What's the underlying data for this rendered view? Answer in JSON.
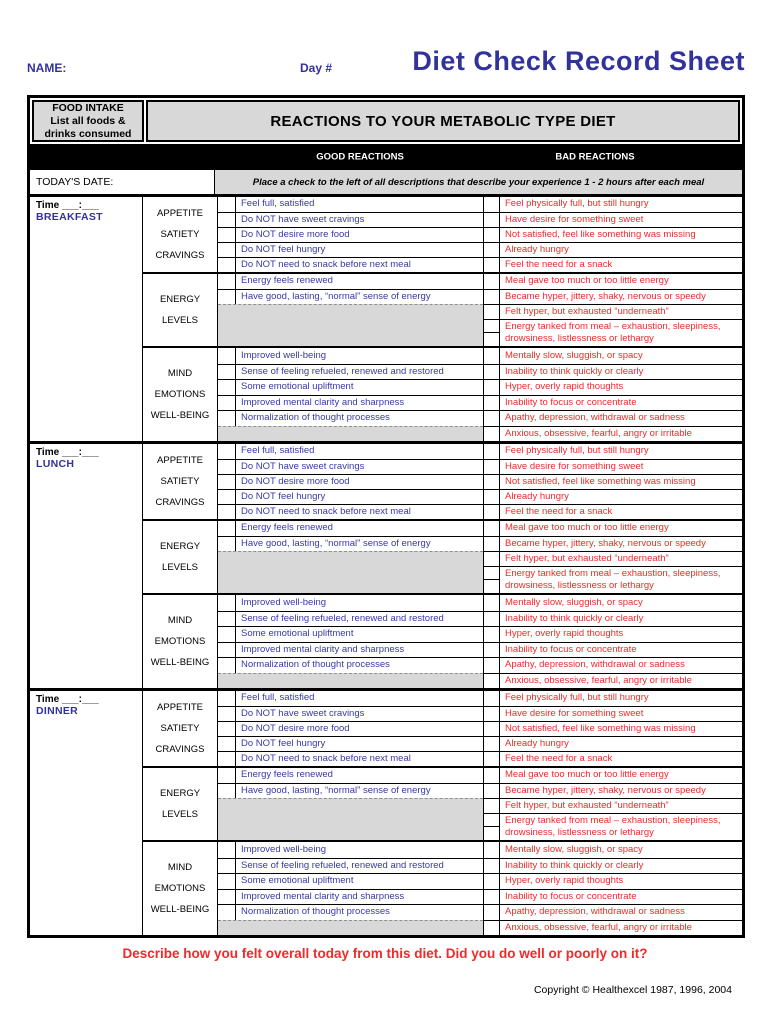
{
  "page": {
    "name_label": "NAME:",
    "day_label": "Day #",
    "title": "Diet Check Record Sheet",
    "footer_prompt": "Describe how you felt overall today from this diet. Did you do well or poorly on it?",
    "copyright": "Copyright © Healthexcel 1987, 1996, 2004"
  },
  "colors": {
    "accent_blue": "#32329b",
    "good_text_blue": "#3838a8",
    "bad_text_red": "#ee2a2a",
    "cell_gray": "#d8d8d8"
  },
  "table": {
    "food_intake_lines": [
      "FOOD INTAKE",
      "List all foods &",
      "drinks consumed"
    ],
    "reactions_header": "REACTIONS TO YOUR METABOLIC TYPE DIET",
    "good_header": "GOOD REACTIONS",
    "bad_header": "BAD REACTIONS",
    "date_label": "TODAY'S DATE:",
    "instruction": "Place a check to the left of all descriptions that describe your experience 1 - 2 hours after each meal"
  },
  "meals": [
    {
      "time_label": "Time ___:___",
      "name": "BREAKFAST",
      "sections": [
        {
          "key": "appetite",
          "category": [
            "APPETITE",
            "SATIETY",
            "CRAVINGS"
          ],
          "rows": [
            {
              "good": "Feel full, satisfied",
              "bad": "Feel physically full, but still hungry"
            },
            {
              "good": "Do NOT have sweet cravings",
              "bad": "Have desire for something sweet"
            },
            {
              "good": "Do NOT desire more food",
              "bad": "Not satisfied, feel like something was missing"
            },
            {
              "good": "Do NOT feel hungry",
              "bad": "Already hungry"
            },
            {
              "good": "Do NOT need to snack before next meal",
              "bad": "Feel the need for a snack"
            }
          ]
        },
        {
          "key": "energy",
          "category": [
            "ENERGY",
            "LEVELS"
          ],
          "rows": [
            {
              "good": "Energy feels renewed",
              "bad": "Meal gave too much or too little energy"
            },
            {
              "good": "Have good, lasting, “normal” sense of energy",
              "bad": "Became hyper, jittery, shaky, nervous or speedy"
            },
            {
              "good": null,
              "bad": "Felt hyper, but exhausted “underneath”"
            },
            {
              "good": null,
              "bad": "Energy tanked from meal – exhaustion, sleepiness, drowsiness, listlessness or lethargy",
              "tall": true
            }
          ]
        },
        {
          "key": "mind",
          "category": [
            "MIND",
            "EMOTIONS",
            "WELL-BEING"
          ],
          "rows": [
            {
              "good": "Improved well-being",
              "bad": "Mentally slow, sluggish, or spacy"
            },
            {
              "good": "Sense of feeling refueled, renewed and restored",
              "bad": "Inability to think quickly or clearly"
            },
            {
              "good": "Some emotional upliftment",
              "bad": "Hyper, overly rapid thoughts"
            },
            {
              "good": "Improved mental clarity and sharpness",
              "bad": "Inability to focus or concentrate"
            },
            {
              "good": "Normalization of thought processes",
              "bad": "Apathy, depression, withdrawal or sadness"
            },
            {
              "good": null,
              "bad": "Anxious, obsessive, fearful, angry or irritable"
            }
          ]
        }
      ]
    },
    {
      "time_label": "Time ___:___",
      "name": "LUNCH",
      "sections": [
        {
          "key": "appetite",
          "category": [
            "APPETITE",
            "SATIETY",
            "CRAVINGS"
          ],
          "rows": [
            {
              "good": "Feel full, satisfied",
              "bad": "Feel physically full, but still hungry"
            },
            {
              "good": "Do NOT have sweet cravings",
              "bad": "Have desire for something sweet"
            },
            {
              "good": "Do NOT desire more food",
              "bad": "Not satisfied, feel like something was missing"
            },
            {
              "good": "Do NOT feel hungry",
              "bad": "Already hungry"
            },
            {
              "good": "Do NOT need to snack before next meal",
              "bad": "Feel the need for a snack"
            }
          ]
        },
        {
          "key": "energy",
          "category": [
            "ENERGY",
            "LEVELS"
          ],
          "rows": [
            {
              "good": "Energy feels renewed",
              "bad": "Meal gave too much or too little energy"
            },
            {
              "good": "Have good, lasting, “normal” sense of energy",
              "bad": "Became hyper, jittery, shaky, nervous or speedy"
            },
            {
              "good": null,
              "bad": "Felt hyper, but exhausted “underneath”"
            },
            {
              "good": null,
              "bad": "Energy tanked from meal – exhaustion, sleepiness, drowsiness, listlessness or lethargy",
              "tall": true
            }
          ]
        },
        {
          "key": "mind",
          "category": [
            "MIND",
            "EMOTIONS",
            "WELL-BEING"
          ],
          "rows": [
            {
              "good": "Improved well-being",
              "bad": "Mentally slow, sluggish, or spacy"
            },
            {
              "good": "Sense of feeling refueled, renewed and restored",
              "bad": "Inability to think quickly or clearly"
            },
            {
              "good": "Some emotional upliftment",
              "bad": "Hyper, overly rapid thoughts"
            },
            {
              "good": "Improved mental clarity and sharpness",
              "bad": "Inability to focus or concentrate"
            },
            {
              "good": "Normalization of thought processes",
              "bad": "Apathy, depression, withdrawal or sadness"
            },
            {
              "good": null,
              "bad": "Anxious, obsessive, fearful, angry or irritable"
            }
          ]
        }
      ]
    },
    {
      "time_label": "Time ___:___",
      "name": "DINNER",
      "sections": [
        {
          "key": "appetite",
          "category": [
            "APPETITE",
            "SATIETY",
            "CRAVINGS"
          ],
          "rows": [
            {
              "good": "Feel full, satisfied",
              "bad": "Feel physically full, but still hungry"
            },
            {
              "good": "Do NOT have sweet cravings",
              "bad": "Have desire for something sweet"
            },
            {
              "good": "Do NOT desire more food",
              "bad": "Not satisfied, feel like something was missing"
            },
            {
              "good": "Do NOT feel hungry",
              "bad": "Already hungry"
            },
            {
              "good": "Do NOT need to snack before next meal",
              "bad": "Feel the need for a snack"
            }
          ]
        },
        {
          "key": "energy",
          "category": [
            "ENERGY",
            "LEVELS"
          ],
          "rows": [
            {
              "good": "Energy feels renewed",
              "bad": "Meal gave too much or too little energy"
            },
            {
              "good": "Have good, lasting, “normal” sense of energy",
              "bad": "Became hyper, jittery, shaky, nervous or speedy"
            },
            {
              "good": null,
              "bad": "Felt hyper, but exhausted “underneath”"
            },
            {
              "good": null,
              "bad": "Energy tanked from meal – exhaustion, sleepiness, drowsiness, listlessness or lethargy",
              "tall": true
            }
          ]
        },
        {
          "key": "mind",
          "category": [
            "MIND",
            "EMOTIONS",
            "WELL-BEING"
          ],
          "rows": [
            {
              "good": "Improved well-being",
              "bad": "Mentally slow, sluggish, or spacy"
            },
            {
              "good": "Sense of feeling refueled, renewed and restored",
              "bad": "Inability to think quickly or clearly"
            },
            {
              "good": "Some emotional upliftment",
              "bad": "Hyper, overly rapid thoughts"
            },
            {
              "good": "Improved mental clarity and sharpness",
              "bad": "Inability to focus or concentrate"
            },
            {
              "good": "Normalization of thought processes",
              "bad": "Apathy, depression, withdrawal or sadness"
            },
            {
              "good": null,
              "bad": "Anxious, obsessive, fearful, angry or irritable"
            }
          ]
        }
      ]
    }
  ]
}
